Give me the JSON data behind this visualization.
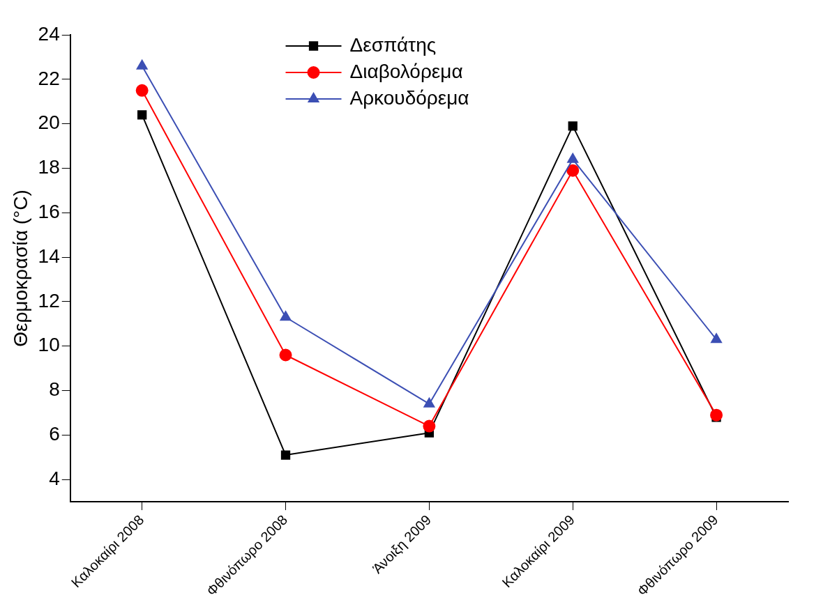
{
  "chart_data": {
    "type": "line",
    "ylabel": "Θερμοκρασία (°C)",
    "categories": [
      "Καλοκαίρι 2008",
      "Φθινόπωρο 2008",
      "Άνοιξη 2009",
      "Καλοκαίρι 2009",
      "Φθινόπωρο 2009"
    ],
    "series": [
      {
        "name": "Δεσπάτης",
        "color": "#000000",
        "marker": "square",
        "values": [
          20.4,
          5.1,
          6.1,
          19.9,
          6.8
        ]
      },
      {
        "name": "Διαβολόρεμα",
        "color": "#ff0000",
        "marker": "circle",
        "values": [
          21.5,
          9.6,
          6.4,
          17.9,
          6.9
        ]
      },
      {
        "name": "Αρκουδόρεμα",
        "color": "#3c4fb4",
        "marker": "triangle",
        "values": [
          22.6,
          11.3,
          7.4,
          18.4,
          10.3
        ]
      }
    ],
    "ylim": [
      3,
      24
    ],
    "yticks": [
      4,
      6,
      8,
      10,
      12,
      14,
      16,
      18,
      20,
      22,
      24
    ],
    "grid": false,
    "legend": "top",
    "line_style": "solid"
  }
}
